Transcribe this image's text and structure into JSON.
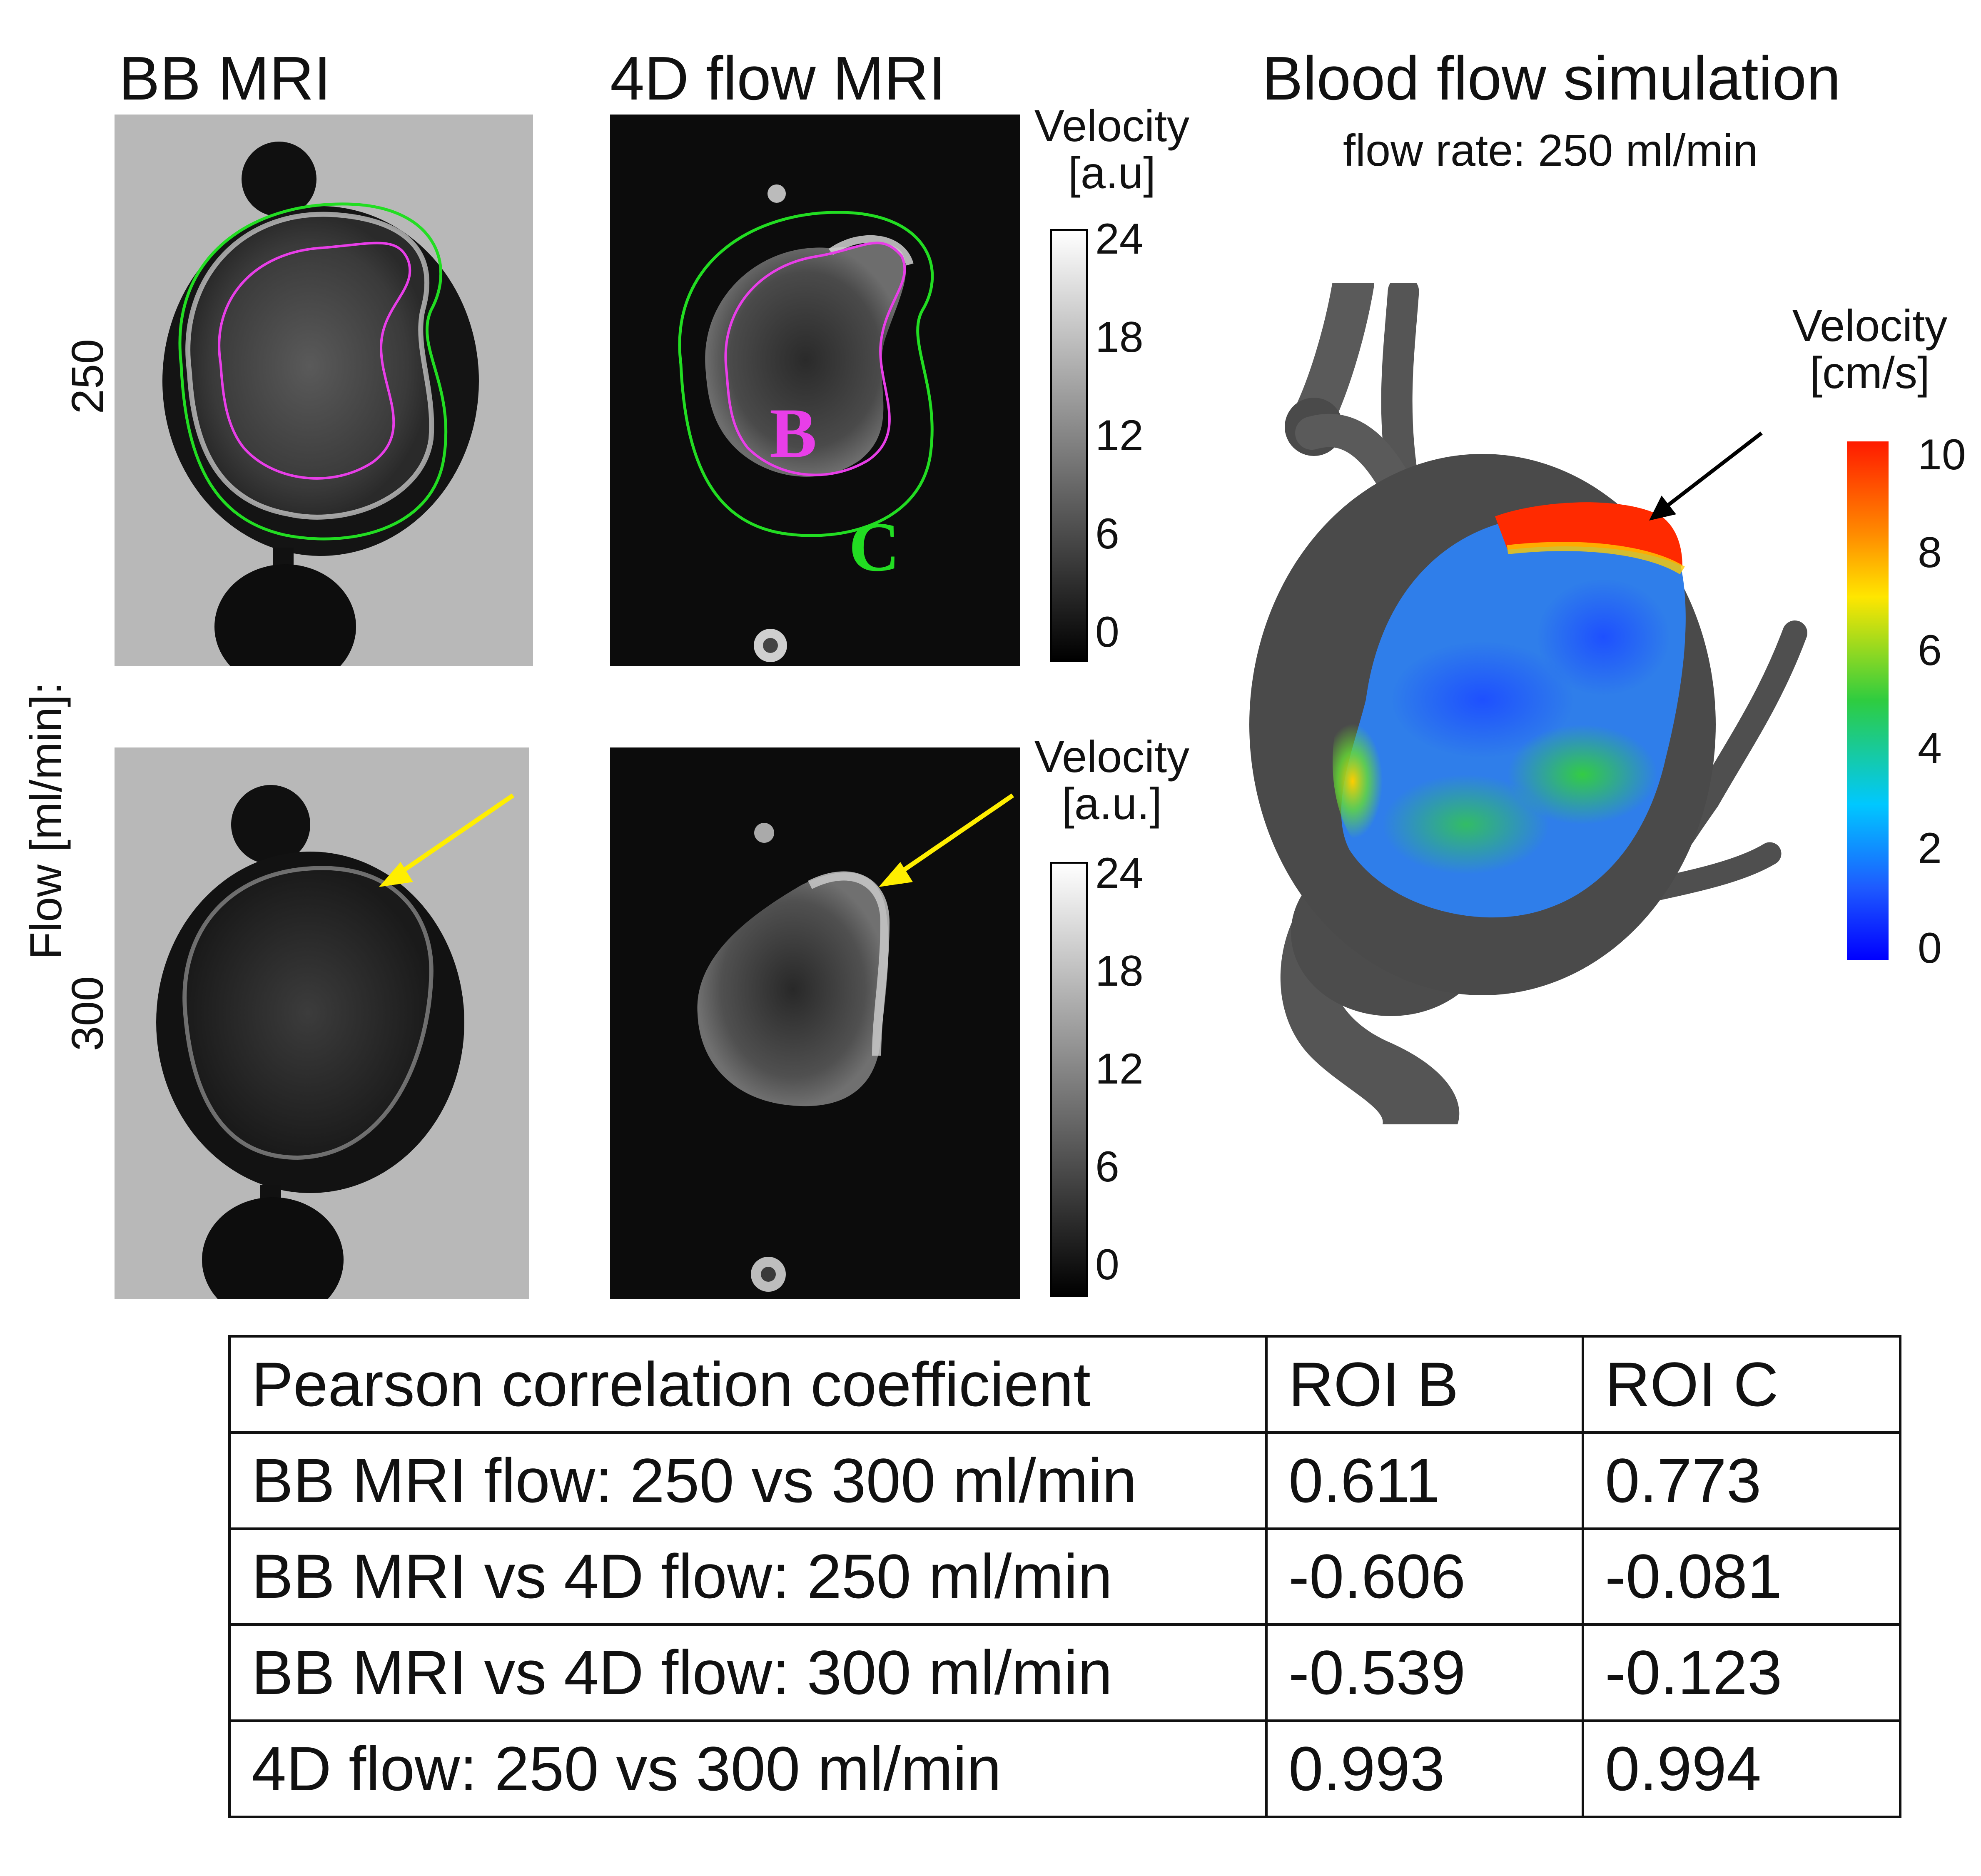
{
  "headings": {
    "bb_mri": "BB MRI",
    "flow4d": "4D flow MRI",
    "simulation": "Blood flow simulation",
    "simulation_subtitle": "flow rate: 250 ml/min"
  },
  "axis_label": "Flow [ml/min]:",
  "rows": [
    "250",
    "300"
  ],
  "roi_labels": {
    "b": "B",
    "c": "C"
  },
  "colorbar_gray_top": {
    "label_line1": "Velocity",
    "label_line2": "[a.u]",
    "ticks": [
      "24",
      "18",
      "12",
      "6",
      "0"
    ]
  },
  "colorbar_gray_bottom": {
    "label_line1": "Velocity",
    "label_line2": "[a.u.]",
    "ticks": [
      "24",
      "18",
      "12",
      "6",
      "0"
    ]
  },
  "colorbar_jet": {
    "label_line1": "Velocity",
    "label_line2": "[cm/s]",
    "ticks": [
      "10",
      "8",
      "6",
      "4",
      "2",
      "0"
    ],
    "colors": [
      "#ff1a00",
      "#ff8c00",
      "#ffe600",
      "#2ecc40",
      "#00c8ff",
      "#1e5bff",
      "#0000ff"
    ]
  },
  "annotation_colors": {
    "roi_b": "#e83ee8",
    "roi_c": "#22dd22",
    "arrow_mri": "#ffee00",
    "arrow_sim": "#000000"
  },
  "table": {
    "header": [
      "Pearson correlation coefficient",
      "ROI B",
      "ROI C"
    ],
    "rows": [
      [
        "BB MRI flow: 250 vs 300 ml/min",
        "0.611",
        "0.773"
      ],
      [
        "BB MRI vs 4D flow: 250 ml/min",
        "-0.606",
        "-0.081"
      ],
      [
        "BB MRI vs 4D flow: 300 ml/min",
        "-0.539",
        "-0.123"
      ],
      [
        "4D flow: 250 vs 300 ml/min",
        "0.993",
        "0.994"
      ]
    ]
  }
}
